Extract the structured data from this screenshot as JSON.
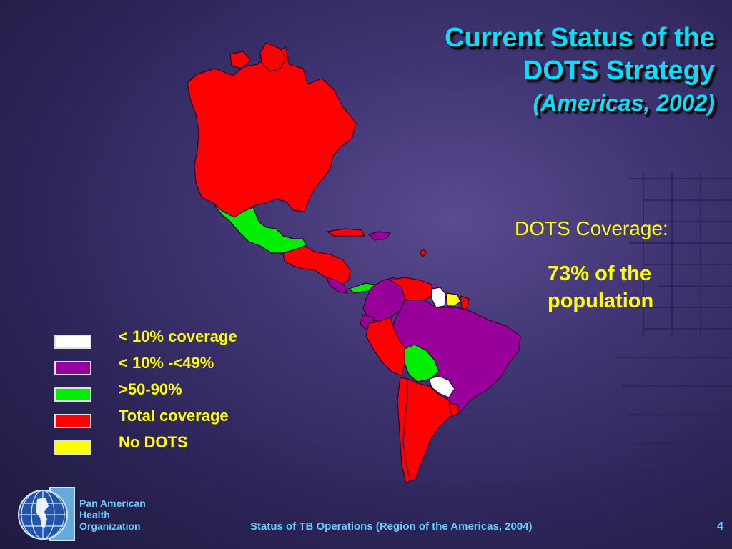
{
  "title": {
    "line1": "Current Status of the",
    "line2": "DOTS Strategy",
    "line3": "(Americas,  2002)"
  },
  "coverage": {
    "label": "DOTS Coverage:",
    "value": "73% of the population"
  },
  "legend": [
    {
      "label": "< 10% coverage",
      "color": "#ffffff"
    },
    {
      "label": "< 10% -<49%",
      "color": "#990099"
    },
    {
      "label": ">50-90%",
      "color": "#00ee00"
    },
    {
      "label": "Total coverage",
      "color": "#ff0000"
    },
    {
      "label": "No DOTS",
      "color": "#ffff00"
    }
  ],
  "footer": {
    "org_name": "Pan American\nHealth\nOrganization",
    "source": "Status of TB Operations (Region of the Americas, 2004)",
    "page": "4"
  },
  "map_legend_colors": {
    "red": "#ff0000",
    "green": "#00ee00",
    "purple": "#990099",
    "white": "#ffffff",
    "yellow": "#ffff00"
  }
}
